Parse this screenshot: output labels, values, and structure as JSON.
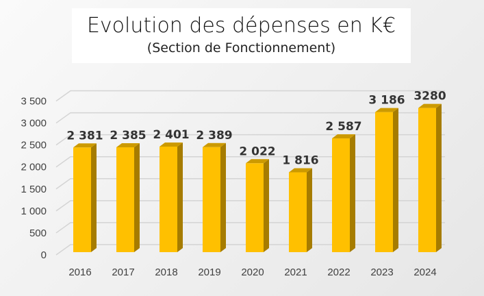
{
  "chart_data": {
    "type": "bar",
    "title": "Evolution des dépenses en K€",
    "subtitle": "(Section de Fonctionnement)",
    "categories": [
      "2016",
      "2017",
      "2018",
      "2019",
      "2020",
      "2021",
      "2022",
      "2023",
      "2024"
    ],
    "values": [
      2381,
      2385,
      2401,
      2389,
      2022,
      1816,
      2587,
      3186,
      3280
    ],
    "data_labels": [
      "2 381",
      "2 385",
      "2 401",
      "2 389",
      "2 022",
      "1 816",
      "2 587",
      "3 186",
      "3280"
    ],
    "yticks": [
      "0",
      "500",
      "1 000",
      "1 500",
      "2 000",
      "2 500",
      "3 000",
      "3 500"
    ],
    "ylim": [
      0,
      3500
    ],
    "xlabel": "",
    "ylabel": "",
    "grid": true,
    "colors": {
      "front": "#FFC000",
      "side": "#A67C00",
      "top": "#CC9A00"
    }
  }
}
